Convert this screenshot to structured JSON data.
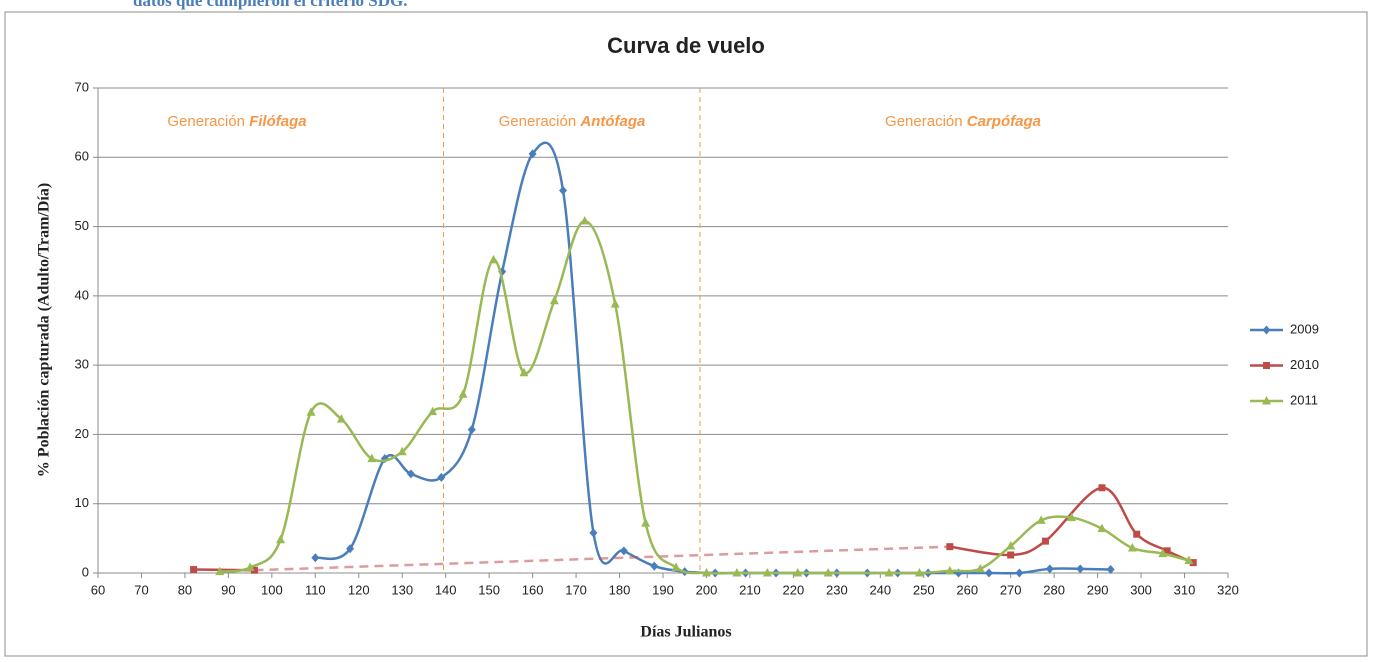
{
  "caption": "datos que cumplieron el criterio SDG.",
  "chart_data": {
    "type": "line",
    "title": "Curva de vuelo",
    "x_label": "Días Julianos",
    "y_label": "% Población capturada (Adulto/Tram/Día)",
    "xlim": [
      60,
      320
    ],
    "xticks": [
      60,
      70,
      80,
      90,
      100,
      110,
      120,
      130,
      140,
      150,
      160,
      170,
      180,
      190,
      200,
      210,
      220,
      230,
      240,
      250,
      260,
      270,
      280,
      290,
      300,
      310,
      320
    ],
    "ylim": [
      0,
      70
    ],
    "yticks": [
      0,
      10,
      20,
      30,
      40,
      50,
      60,
      70
    ],
    "grid": true,
    "smooth": true,
    "legend": "right",
    "dividers": [
      139.5,
      198.5
    ],
    "annotations": [
      {
        "text": "Generación ",
        "emphasis": "Filófaga"
      },
      {
        "text": "Generación ",
        "emphasis": "Antófaga"
      },
      {
        "text": "Generación ",
        "emphasis": "Carpófaga"
      }
    ],
    "series": [
      {
        "name": "2009",
        "color": "#4a7ebb",
        "marker": "diamond",
        "x": [
          110,
          118,
          126,
          132,
          139,
          146,
          153,
          160,
          167,
          174,
          181,
          188,
          195,
          202,
          209,
          216,
          223,
          230,
          237,
          244,
          251,
          258,
          265,
          272,
          279,
          286,
          293
        ],
        "values": [
          2.2,
          3.5,
          16.5,
          14.3,
          13.8,
          20.7,
          43.5,
          60.5,
          55.2,
          5.8,
          3.2,
          1.0,
          0.2,
          0,
          0,
          0,
          0,
          0,
          0,
          0,
          0,
          0,
          0,
          0,
          0.6,
          0.6,
          0.5
        ]
      },
      {
        "name": "2010",
        "color": "#be4b48",
        "marker": "square",
        "gap_style": "dashed",
        "x": [
          82,
          96,
          null,
          256,
          270,
          278,
          291,
          299,
          306,
          312
        ],
        "values": [
          0.5,
          0.4,
          null,
          3.8,
          2.6,
          4.6,
          12.3,
          5.6,
          3.2,
          1.5
        ]
      },
      {
        "name": "2011",
        "color": "#98b954",
        "marker": "triangle",
        "x": [
          88,
          95,
          102,
          109,
          116,
          123,
          130,
          137,
          144,
          151,
          158,
          165,
          172,
          179,
          186,
          193,
          200,
          207,
          214,
          221,
          228,
          242,
          249,
          256,
          263,
          270,
          277,
          284,
          291,
          298,
          305,
          311
        ],
        "values": [
          0.2,
          0.8,
          4.8,
          23.2,
          22.2,
          16.5,
          17.5,
          23.3,
          25.8,
          45.2,
          28.9,
          39.3,
          50.8,
          38.8,
          7.2,
          0.8,
          0,
          0,
          0,
          0,
          0,
          0,
          0,
          0.3,
          0.6,
          3.9,
          7.6,
          8.0,
          6.4,
          3.6,
          2.8,
          1.8
        ]
      }
    ]
  }
}
